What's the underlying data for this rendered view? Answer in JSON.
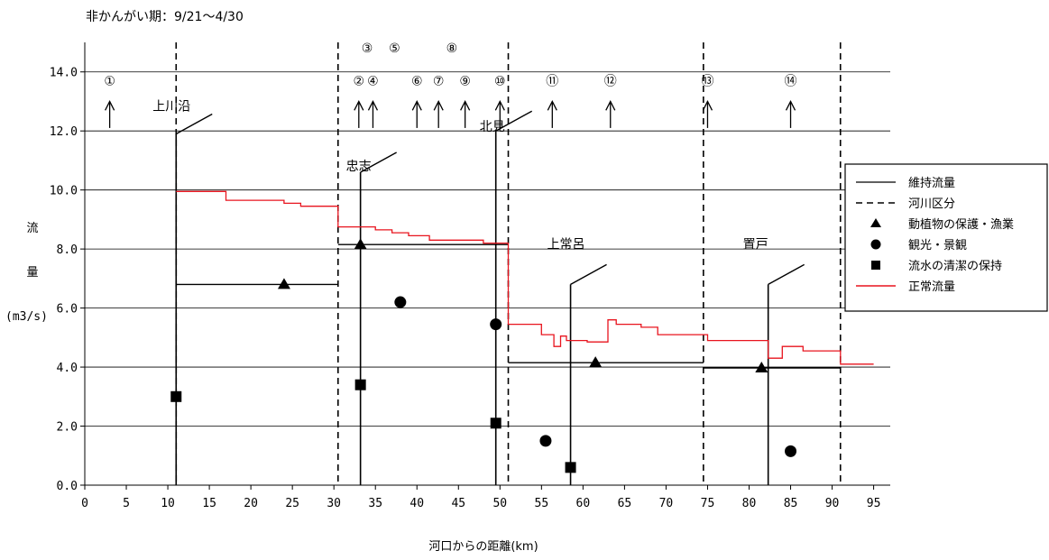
{
  "chart_data": {
    "type": "line",
    "title": "非かんがい期：9/21～4/30",
    "xlabel": "河口からの距離(km)",
    "ylabel": [
      "流",
      "量",
      "(m3/s)"
    ],
    "xlim": [
      0,
      97
    ],
    "ylim": [
      0,
      15
    ],
    "xticks": [
      0,
      5,
      10,
      15,
      20,
      25,
      30,
      35,
      40,
      45,
      50,
      55,
      60,
      65,
      70,
      75,
      80,
      85,
      90,
      95
    ],
    "yticks": [
      0,
      2,
      4,
      6,
      8,
      10,
      12,
      14
    ],
    "ytick_labels": [
      "0.0",
      "2.0",
      "4.0",
      "6.0",
      "8.0",
      "10.0",
      "12.0",
      "14.0"
    ],
    "grid": "horizontal",
    "legend_position": "right",
    "legend": [
      {
        "label": "維持流量",
        "marker": "solid-line"
      },
      {
        "label": "河川区分",
        "marker": "dashed-line"
      },
      {
        "label": "動植物の保護・漁業",
        "marker": "triangle"
      },
      {
        "label": "観光・景観",
        "marker": "circle"
      },
      {
        "label": "流水の清潔の保持",
        "marker": "square"
      },
      {
        "label": "正常流量",
        "marker": "red-line"
      }
    ],
    "river_section_boundaries": [
      11,
      30.5,
      51,
      74.5,
      91
    ],
    "maintenance_flow": [
      {
        "x_start": 11,
        "x_end": 30.5,
        "value": 6.8
      },
      {
        "x_start": 30.5,
        "x_end": 51,
        "value": 8.15
      },
      {
        "x_start": 51,
        "x_end": 74.5,
        "value": 4.15
      },
      {
        "x_start": 74.5,
        "x_end": 91,
        "value": 3.97
      }
    ],
    "normal_flow": [
      [
        11,
        9.95
      ],
      [
        17,
        9.95
      ],
      [
        17,
        9.65
      ],
      [
        24,
        9.65
      ],
      [
        24,
        9.55
      ],
      [
        26,
        9.55
      ],
      [
        26,
        9.45
      ],
      [
        30.5,
        9.45
      ],
      [
        30.5,
        8.75
      ],
      [
        35,
        8.75
      ],
      [
        35,
        8.65
      ],
      [
        37,
        8.65
      ],
      [
        37,
        8.55
      ],
      [
        39,
        8.55
      ],
      [
        39,
        8.45
      ],
      [
        41.5,
        8.45
      ],
      [
        41.5,
        8.3
      ],
      [
        48,
        8.3
      ],
      [
        48,
        8.2
      ],
      [
        51,
        8.2
      ],
      [
        51,
        5.45
      ],
      [
        55,
        5.45
      ],
      [
        55,
        5.1
      ],
      [
        56.5,
        5.1
      ],
      [
        56.5,
        4.7
      ],
      [
        57.3,
        4.7
      ],
      [
        57.3,
        5.05
      ],
      [
        58,
        5.05
      ],
      [
        58,
        4.9
      ],
      [
        60.5,
        4.9
      ],
      [
        60.5,
        4.85
      ],
      [
        63,
        4.85
      ],
      [
        63,
        5.6
      ],
      [
        64,
        5.6
      ],
      [
        64,
        5.45
      ],
      [
        67,
        5.45
      ],
      [
        67,
        5.35
      ],
      [
        69,
        5.35
      ],
      [
        69,
        5.1
      ],
      [
        75,
        5.1
      ],
      [
        75,
        4.9
      ],
      [
        82.3,
        4.9
      ],
      [
        82.3,
        4.3
      ],
      [
        84,
        4.3
      ],
      [
        84,
        4.7
      ],
      [
        86.5,
        4.7
      ],
      [
        86.5,
        4.55
      ],
      [
        91,
        4.55
      ],
      [
        91,
        4.1
      ],
      [
        95,
        4.1
      ]
    ],
    "flora_fauna_points": [
      [
        24,
        6.8
      ],
      [
        33.2,
        8.15
      ],
      [
        61.5,
        4.15
      ],
      [
        81.5,
        3.97
      ]
    ],
    "tourism_landscape_points": [
      [
        38,
        6.2
      ],
      [
        49.5,
        5.45
      ],
      [
        55.5,
        1.5
      ],
      [
        85,
        1.15
      ]
    ],
    "water_cleanliness_points": [
      [
        11,
        3.0
      ],
      [
        33.2,
        3.4
      ],
      [
        49.5,
        2.1
      ],
      [
        58.5,
        0.6
      ]
    ],
    "reference_points": [
      {
        "label": "①",
        "x": 3,
        "row": 1
      },
      {
        "label": "②",
        "x": 33,
        "row": 1
      },
      {
        "label": "③",
        "x": 34,
        "row": 2
      },
      {
        "label": "④",
        "x": 34.7,
        "row": 1
      },
      {
        "label": "⑤",
        "x": 37.3,
        "row": 2
      },
      {
        "label": "⑥",
        "x": 40,
        "row": 1
      },
      {
        "label": "⑦",
        "x": 42.6,
        "row": 1
      },
      {
        "label": "⑧",
        "x": 44.2,
        "row": 2
      },
      {
        "label": "⑨",
        "x": 45.8,
        "row": 1
      },
      {
        "label": "⑩",
        "x": 50,
        "row": 1
      },
      {
        "label": "⑪",
        "x": 56.3,
        "row": 1
      },
      {
        "label": "⑫",
        "x": 63.3,
        "row": 1
      },
      {
        "label": "⑬",
        "x": 75,
        "row": 1
      },
      {
        "label": "⑭",
        "x": 85,
        "row": 1
      }
    ],
    "stations": [
      {
        "name": "上川沿",
        "x": 11
      },
      {
        "name": "忠志",
        "x": 33.2
      },
      {
        "name": "北見",
        "x": 49.5
      },
      {
        "name": "上常呂",
        "x": 58.5
      },
      {
        "name": "置戸",
        "x": 82.3
      }
    ]
  }
}
